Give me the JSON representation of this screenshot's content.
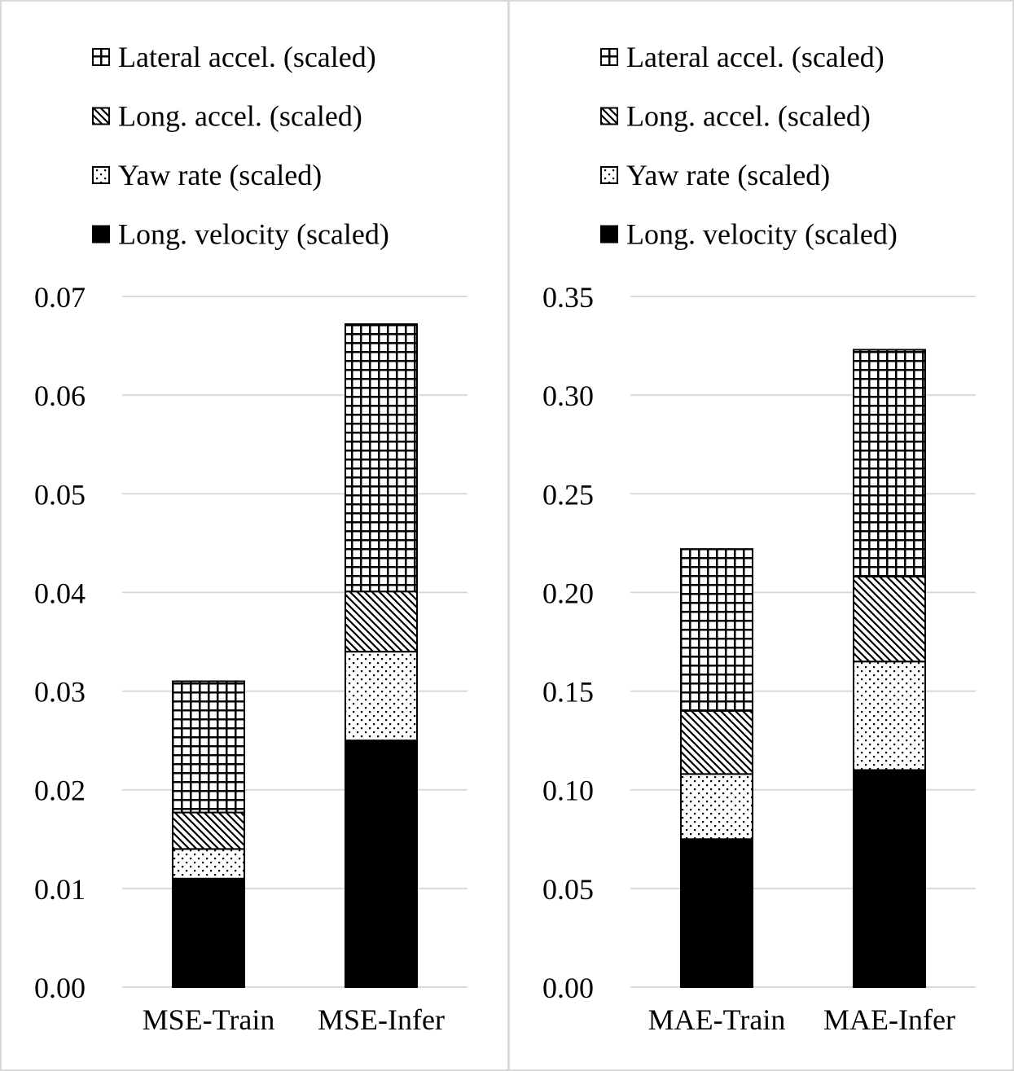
{
  "chart_data": [
    {
      "type": "bar",
      "stacked": true,
      "categories": [
        "MSE-Train",
        "MSE-Infer"
      ],
      "series": [
        {
          "name": "Long. velocity (scaled)",
          "values": [
            0.011,
            0.025
          ],
          "pattern": "solid"
        },
        {
          "name": "Yaw rate (scaled)",
          "values": [
            0.003,
            0.009
          ],
          "pattern": "dots"
        },
        {
          "name": "Long. accel. (scaled)",
          "values": [
            0.0037,
            0.0061
          ],
          "pattern": "diagonal"
        },
        {
          "name": "Lateral accel. (scaled)",
          "values": [
            0.0133,
            0.0271
          ],
          "pattern": "grid"
        }
      ],
      "legend_order": [
        3,
        2,
        1,
        0
      ],
      "yticks": [
        "0.00",
        "0.01",
        "0.02",
        "0.03",
        "0.04",
        "0.05",
        "0.06",
        "0.07"
      ],
      "ylim": [
        0,
        0.07
      ],
      "grid": true,
      "legend_position": "top"
    },
    {
      "type": "bar",
      "stacked": true,
      "categories": [
        "MAE-Train",
        "MAE-Infer"
      ],
      "series": [
        {
          "name": "Long. velocity (scaled)",
          "values": [
            0.075,
            0.11
          ],
          "pattern": "solid"
        },
        {
          "name": "Yaw rate (scaled)",
          "values": [
            0.033,
            0.055
          ],
          "pattern": "dots"
        },
        {
          "name": "Long. accel. (scaled)",
          "values": [
            0.032,
            0.043
          ],
          "pattern": "diagonal"
        },
        {
          "name": "Lateral accel. (scaled)",
          "values": [
            0.082,
            0.115
          ],
          "pattern": "grid"
        }
      ],
      "legend_order": [
        3,
        2,
        1,
        0
      ],
      "yticks": [
        "0.00",
        "0.05",
        "0.10",
        "0.15",
        "0.20",
        "0.25",
        "0.30",
        "0.35"
      ],
      "ylim": [
        0,
        0.35
      ],
      "grid": true,
      "legend_position": "top"
    }
  ],
  "colors": {
    "bar_fill": "#000000",
    "gridline": "#d9d9d9",
    "background": "#ffffff"
  }
}
